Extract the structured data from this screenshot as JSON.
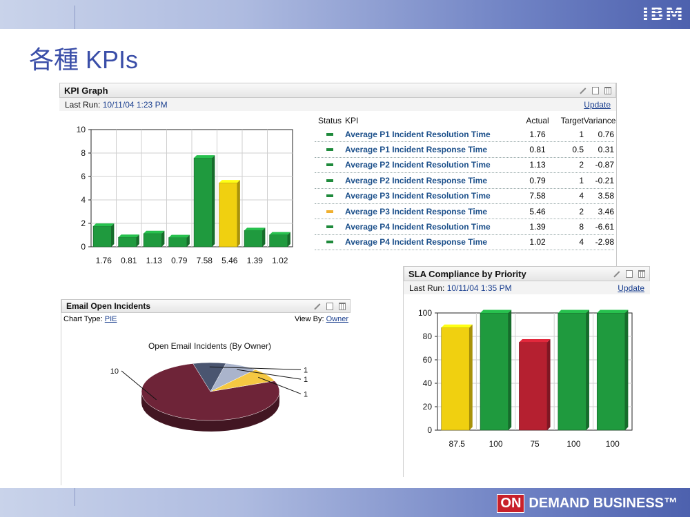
{
  "slide": {
    "title": "各種 KPIs",
    "logo": "IBM",
    "footer_on": "ON",
    "footer_text": "DEMAND BUSINESS™"
  },
  "kpi_portlet": {
    "title": "KPI Graph",
    "last_run_label": "Last Run:",
    "last_run_value": "10/11/04 1:23 PM",
    "update_label": "Update",
    "table": {
      "headers": {
        "status": "Status",
        "kpi": "KPI",
        "actual": "Actual",
        "target": "Target",
        "variance": "Variance"
      },
      "rows": [
        {
          "status_color": "#1f8a3c",
          "kpi": "Average P1 Incident Resolution Time",
          "actual": "1.76",
          "target": "1",
          "variance": "0.76"
        },
        {
          "status_color": "#1f8a3c",
          "kpi": "Average P1 Incident Response Time",
          "actual": "0.81",
          "target": "0.5",
          "variance": "0.31"
        },
        {
          "status_color": "#1f8a3c",
          "kpi": "Average P2 Incident Resolution Time",
          "actual": "1.13",
          "target": "2",
          "variance": "-0.87"
        },
        {
          "status_color": "#1f8a3c",
          "kpi": "Average P2 Incident Response Time",
          "actual": "0.79",
          "target": "1",
          "variance": "-0.21"
        },
        {
          "status_color": "#1f8a3c",
          "kpi": "Average P3 Incident Resolution Time",
          "actual": "7.58",
          "target": "4",
          "variance": "3.58"
        },
        {
          "status_color": "#f0b030",
          "kpi": "Average P3 Incident Response Time",
          "actual": "5.46",
          "target": "2",
          "variance": "3.46"
        },
        {
          "status_color": "#1f8a3c",
          "kpi": "Average P4 Incident Resolution Time",
          "actual": "1.39",
          "target": "8",
          "variance": "-6.61"
        },
        {
          "status_color": "#1f8a3c",
          "kpi": "Average P4 Incident Response Time",
          "actual": "1.02",
          "target": "4",
          "variance": "-2.98"
        }
      ]
    }
  },
  "email_portlet": {
    "title": "Email Open Incidents",
    "chart_type_label": "Chart Type:",
    "chart_type_value": "PIE",
    "view_by_label": "View By:",
    "view_by_value": "Owner"
  },
  "sla_portlet": {
    "title": "SLA Compliance by Priority",
    "last_run_label": "Last Run:",
    "last_run_value": "10/11/04 1:35 PM",
    "update_label": "Update"
  },
  "colors": {
    "green": "#1f9a3e",
    "yellow": "#f0d010",
    "red": "#b52030",
    "maroon": "#6e2438",
    "slate": "#4a5570",
    "lightblue": "#aab4cc",
    "gold": "#f5c842"
  },
  "chart_data": [
    {
      "type": "bar",
      "categories": [
        "1.76",
        "0.81",
        "1.13",
        "0.79",
        "7.58",
        "5.46",
        "1.39",
        "1.02"
      ],
      "values": [
        1.76,
        0.81,
        1.13,
        0.79,
        7.58,
        5.46,
        1.39,
        1.02
      ],
      "colors": [
        "green",
        "green",
        "green",
        "green",
        "green",
        "yellow",
        "green",
        "green"
      ],
      "ylim": [
        0,
        10
      ],
      "yticks": [
        "0",
        "2",
        "4",
        "6",
        "8",
        "10"
      ],
      "grid": true
    },
    {
      "type": "pie",
      "title": "Open Email Incidents (By Owner)",
      "values": [
        10,
        1,
        1,
        1
      ],
      "labels": [
        "10",
        "1",
        "1",
        "1"
      ],
      "colors": [
        "maroon",
        "slate",
        "lightblue",
        "gold"
      ]
    },
    {
      "type": "bar",
      "categories": [
        "87.5",
        "100",
        "75",
        "100",
        "100"
      ],
      "values": [
        87.5,
        100,
        75,
        100,
        100
      ],
      "colors": [
        "yellow",
        "green",
        "red",
        "green",
        "green"
      ],
      "ylim": [
        0,
        100
      ],
      "yticks": [
        "0",
        "20",
        "40",
        "60",
        "80",
        "100"
      ],
      "grid": true
    }
  ]
}
